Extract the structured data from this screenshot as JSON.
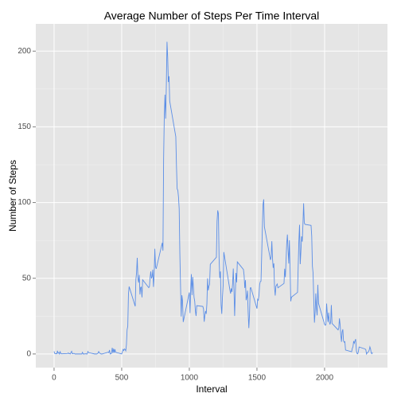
{
  "chart_data": {
    "type": "line",
    "title": "Average Number of Steps Per Time Interval",
    "x_label": "Interval",
    "y_label": "Number of Steps",
    "x": [
      0,
      5,
      10,
      15,
      20,
      25,
      30,
      35,
      40,
      45,
      50,
      55,
      100,
      105,
      110,
      115,
      120,
      125,
      130,
      135,
      140,
      145,
      150,
      155,
      200,
      205,
      210,
      215,
      220,
      225,
      230,
      235,
      240,
      245,
      250,
      255,
      300,
      305,
      310,
      315,
      320,
      325,
      330,
      335,
      340,
      345,
      350,
      355,
      400,
      405,
      410,
      415,
      420,
      425,
      430,
      435,
      440,
      445,
      450,
      455,
      500,
      505,
      510,
      515,
      520,
      525,
      530,
      535,
      540,
      545,
      550,
      555,
      600,
      605,
      610,
      615,
      620,
      625,
      630,
      635,
      640,
      645,
      650,
      655,
      700,
      705,
      710,
      715,
      720,
      725,
      730,
      735,
      740,
      745,
      750,
      755,
      800,
      805,
      810,
      815,
      820,
      825,
      830,
      835,
      840,
      845,
      850,
      855,
      900,
      905,
      910,
      915,
      920,
      925,
      930,
      935,
      940,
      945,
      950,
      955,
      1000,
      1005,
      1010,
      1015,
      1020,
      1025,
      1030,
      1035,
      1040,
      1045,
      1050,
      1055,
      1100,
      1105,
      1110,
      1115,
      1120,
      1125,
      1130,
      1135,
      1140,
      1145,
      1150,
      1155,
      1200,
      1205,
      1210,
      1215,
      1220,
      1225,
      1230,
      1235,
      1240,
      1245,
      1250,
      1255,
      1300,
      1305,
      1310,
      1315,
      1320,
      1325,
      1330,
      1335,
      1340,
      1345,
      1350,
      1355,
      1400,
      1405,
      1410,
      1415,
      1420,
      1425,
      1430,
      1435,
      1440,
      1445,
      1450,
      1455,
      1500,
      1505,
      1510,
      1515,
      1520,
      1525,
      1530,
      1535,
      1540,
      1545,
      1550,
      1555,
      1600,
      1605,
      1610,
      1615,
      1620,
      1625,
      1630,
      1635,
      1640,
      1645,
      1650,
      1655,
      1700,
      1705,
      1710,
      1715,
      1720,
      1725,
      1730,
      1735,
      1740,
      1745,
      1750,
      1755,
      1800,
      1805,
      1810,
      1815,
      1820,
      1825,
      1830,
      1835,
      1840,
      1845,
      1850,
      1855,
      1900,
      1905,
      1910,
      1915,
      1920,
      1925,
      1930,
      1935,
      1940,
      1945,
      1950,
      1955,
      2000,
      2005,
      2010,
      2015,
      2020,
      2025,
      2030,
      2035,
      2040,
      2045,
      2050,
      2055,
      2100,
      2105,
      2110,
      2115,
      2120,
      2125,
      2130,
      2135,
      2140,
      2145,
      2150,
      2155,
      2200,
      2205,
      2210,
      2215,
      2220,
      2225,
      2230,
      2235,
      2240,
      2245,
      2250,
      2255,
      2300,
      2305,
      2310,
      2315,
      2320,
      2325,
      2330,
      2335,
      2340,
      2345,
      2350,
      2355
    ],
    "series": [
      {
        "name": "Number of Steps",
        "color": "#5b8ee6",
        "values": [
          1.7,
          0.3,
          0.1,
          0.2,
          0.1,
          2.1,
          0.5,
          0.9,
          0,
          1.5,
          0.3,
          0.1,
          0.3,
          0.7,
          0.2,
          0.3,
          0,
          1.1,
          1.8,
          0.2,
          0.2,
          0.4,
          0.3,
          0,
          0,
          0,
          1.1,
          0,
          0,
          0.1,
          0,
          0.2,
          0,
          0,
          1.6,
          0.9,
          0,
          0,
          0,
          0,
          0.2,
          0.6,
          1.6,
          0.6,
          0.5,
          0.1,
          0,
          0,
          1.2,
          0.9,
          2.6,
          0,
          0.3,
          0.4,
          4.1,
          0.7,
          3.5,
          0.8,
          3.1,
          1.1,
          0,
          1.6,
          3.0,
          2.3,
          3.3,
          3.0,
          2.1,
          6.1,
          16.0,
          18.3,
          39.5,
          44.5,
          31.5,
          49.3,
          53.8,
          63.5,
          50.0,
          47.1,
          52.2,
          39.3,
          44.0,
          44.2,
          37.4,
          49.0,
          43.8,
          44.4,
          50.5,
          54.5,
          49.9,
          51.0,
          55.7,
          44.3,
          52.3,
          69.5,
          57.8,
          56.2,
          73.4,
          68.2,
          129.4,
          157.5,
          171.2,
          155.4,
          177.3,
          206.2,
          195.9,
          179.6,
          183.4,
          167.0,
          143.5,
          124.0,
          109.1,
          108.1,
          103.7,
          96.0,
          66.2,
          45.2,
          24.8,
          38.8,
          35.0,
          21.1,
          40.6,
          27.0,
          42.4,
          52.7,
          38.9,
          50.8,
          44.3,
          37.4,
          34.7,
          28.3,
          25.1,
          31.9,
          31.4,
          29.7,
          21.3,
          25.5,
          28.4,
          26.5,
          33.4,
          50.0,
          42.0,
          44.6,
          46.0,
          59.2,
          63.9,
          87.7,
          94.8,
          92.8,
          63.4,
          50.2,
          54.5,
          32.4,
          26.5,
          37.7,
          45.1,
          67.3,
          42.3,
          39.9,
          43.3,
          41.0,
          46.2,
          56.4,
          42.8,
          25.1,
          40.0,
          53.5,
          47.3,
          60.8,
          55.8,
          52.0,
          43.6,
          48.7,
          35.5,
          37.5,
          41.8,
          27.5,
          17.1,
          26.1,
          43.6,
          43.8,
          30.0,
          36.1,
          35.5,
          38.8,
          46.0,
          47.8,
          48.1,
          65.3,
          82.9,
          98.7,
          102.1,
          84.0,
          62.1,
          64.1,
          74.5,
          63.2,
          56.9,
          59.8,
          43.9,
          38.6,
          44.7,
          45.5,
          46.2,
          43.7,
          46.6,
          56.3,
          50.7,
          61.2,
          72.7,
          78.9,
          68.9,
          59.7,
          75.1,
          56.5,
          34.8,
          37.5,
          40.7,
          58.0,
          74.7,
          85.3,
          59.3,
          67.8,
          77.7,
          74.2,
          85.3,
          99.5,
          86.6,
          85.6,
          84.9,
          77.8,
          58.0,
          53.4,
          36.3,
          20.7,
          27.4,
          40.0,
          30.2,
          25.5,
          45.7,
          33.5,
          19.6,
          19.0,
          19.3,
          33.3,
          26.8,
          21.2,
          27.3,
          21.3,
          19.5,
          21.3,
          32.3,
          20.2,
          15.9,
          17.2,
          23.5,
          19.2,
          12.5,
          8.0,
          14.7,
          16.3,
          8.7,
          7.8,
          8.1,
          2.6,
          1.5,
          3.7,
          4.8,
          8.5,
          7.1,
          8.7,
          9.8,
          2.2,
          0.3,
          0.1,
          1.6,
          4.6,
          3.3,
          2.8,
          0,
          0.8,
          1.0,
          1.6,
          2.6,
          4.7,
          3.3,
          0.6,
          0.2,
          1.1
        ]
      }
    ],
    "xlim": [
      -135,
      2465
    ],
    "xticks": [
      0,
      500,
      1000,
      1500,
      2000
    ],
    "x_minor_grid": [
      250,
      750,
      1250,
      1750,
      2250
    ],
    "ylim": [
      -9,
      218
    ],
    "yticks": [
      0,
      50,
      100,
      150,
      200
    ],
    "y_minor_grid": [
      25,
      75,
      125,
      175
    ],
    "grid": true
  }
}
